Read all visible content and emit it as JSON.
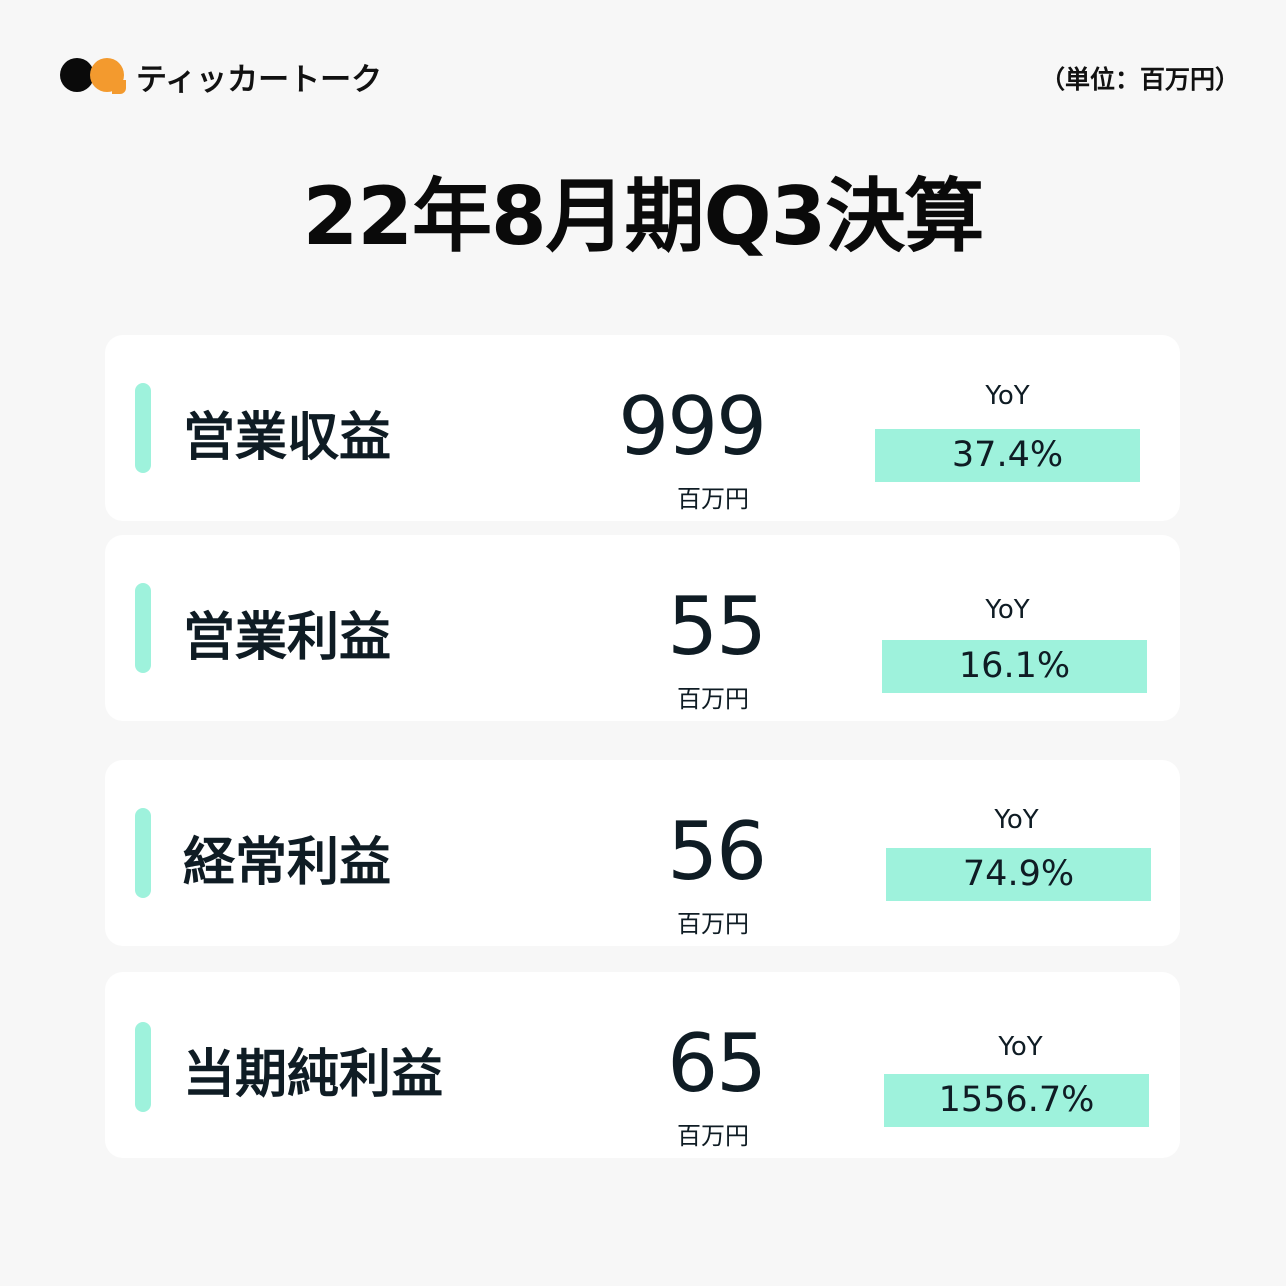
{
  "brand": {
    "name": "ティッカートーク",
    "colors": {
      "black_dot": "#0a0a0a",
      "orange_dot": "#f39a2e"
    }
  },
  "unit_note": "（単位：百万円）",
  "title": "22年8月期Q3決算",
  "accent_color": "#9ef2dc",
  "metrics": [
    {
      "label": "営業収益",
      "value": "999",
      "unit": "百万円",
      "yoy_label": "YoY",
      "yoy": "37.4%"
    },
    {
      "label": "営業利益",
      "value": "55",
      "unit": "百万円",
      "yoy_label": "YoY",
      "yoy": "16.1%"
    },
    {
      "label": "経常利益",
      "value": "56",
      "unit": "百万円",
      "yoy_label": "YoY",
      "yoy": "74.9%"
    },
    {
      "label": "当期純利益",
      "value": "65",
      "unit": "百万円",
      "yoy_label": "YoY",
      "yoy": "1556.7%"
    }
  ]
}
